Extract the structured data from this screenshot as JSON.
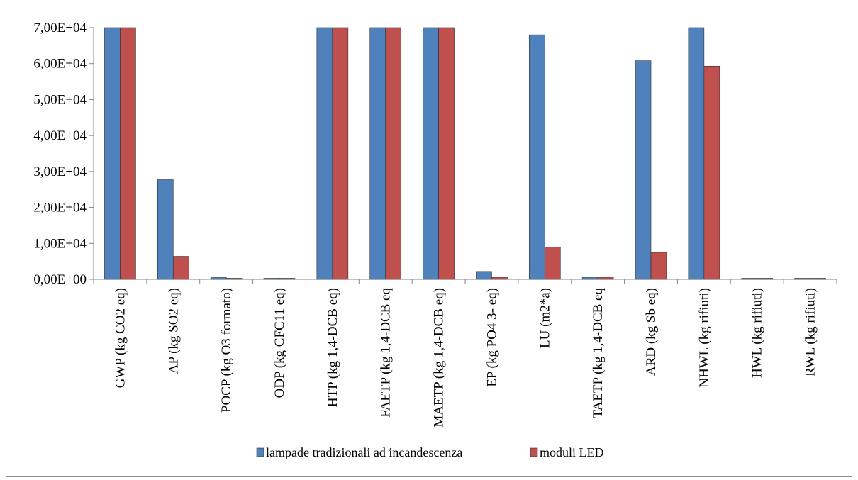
{
  "chart_data": {
    "type": "bar",
    "title": "",
    "xlabel": "",
    "ylabel": "",
    "ylim": [
      0,
      70000
    ],
    "yticks": [
      0,
      10000,
      20000,
      30000,
      40000,
      50000,
      60000,
      70000
    ],
    "ytick_labels": [
      "0,00E+00",
      "1,00E+04",
      "2,00E+04",
      "3,00E+04",
      "4,00E+04",
      "5,00E+04",
      "6,00E+04",
      "7,00E+04"
    ],
    "grid": false,
    "legend": "bottom",
    "categories": [
      "GWP (kg CO2 eq)",
      "AP (kg SO2 eq)",
      "POCP (kg O3 formato)",
      "ODP (kg CFC11 eq)",
      "HTP (kg 1,4-DCB eq)",
      "FAETP (kg 1,4-DCB eq",
      "MAETP (kg 1,4-DCB eq)",
      "EP (kg PO4 3- eq)",
      "LU (m2*a)",
      "TAETP (kg 1,4-DCB eq",
      "ARD (kg Sb eq)",
      "NHWL (kg rifiuti)",
      "HWL (kg rifiuti)",
      "RWL (kg rifiuti)"
    ],
    "series": [
      {
        "name": "lampade tradizionali ad incandescenza",
        "color": "#4F81BD",
        "values": [
          70000,
          27700,
          600,
          300,
          70000,
          70000,
          70000,
          2200,
          68000,
          600,
          60800,
          70000,
          300,
          300
        ]
      },
      {
        "name": "moduli LED",
        "color": "#C0504D",
        "values": [
          70000,
          6400,
          300,
          300,
          70000,
          70000,
          70000,
          600,
          9000,
          600,
          7500,
          59300,
          300,
          300
        ]
      }
    ]
  }
}
